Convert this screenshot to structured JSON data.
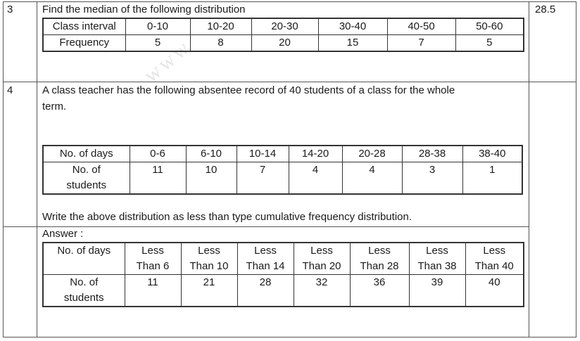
{
  "q3": {
    "number": "3",
    "question": "Find the median of the following distribution",
    "answer": "28.5",
    "table": {
      "row_labels": [
        "Class interval",
        "Frequency"
      ],
      "intervals": [
        "0-10",
        "10-20",
        "20-30",
        "30-40",
        "40-50",
        "50-60"
      ],
      "frequencies": [
        "5",
        "8",
        "20",
        "15",
        "7",
        "5"
      ]
    }
  },
  "q4": {
    "number": "4",
    "question_line1": "A class teacher has the following absentee record of 40 students of a class for the whole",
    "question_line2": "term.",
    "table": {
      "row1_label": "No. of days",
      "row2_label_line1": "No. of",
      "row2_label_line2": "students",
      "days": [
        "0-6",
        "6-10",
        "10-14",
        "14-20",
        "20-28",
        "28-38",
        "38-40"
      ],
      "students": [
        "11",
        "10",
        "7",
        "4",
        "4",
        "3",
        "1"
      ]
    },
    "instruction": "Write the above distribution as less than type cumulative frequency distribution."
  },
  "answer": {
    "heading": "Answer :",
    "table": {
      "row1_label": "No. of days",
      "row2_label_line1": "No. of",
      "row2_label_line2": "students",
      "headers": [
        {
          "line1": "Less",
          "line2": "Than 6"
        },
        {
          "line1": "Less",
          "line2": "Than 10"
        },
        {
          "line1": "Less",
          "line2": "Than 14"
        },
        {
          "line1": "Less",
          "line2": "Than 20"
        },
        {
          "line1": "Less",
          "line2": "Than 28"
        },
        {
          "line1": "Less",
          "line2": "Than 38"
        },
        {
          "line1": "Less",
          "line2": "Than 40"
        }
      ],
      "cumulative": [
        "11",
        "21",
        "28",
        "32",
        "36",
        "39",
        "40"
      ]
    }
  },
  "watermark": "www"
}
